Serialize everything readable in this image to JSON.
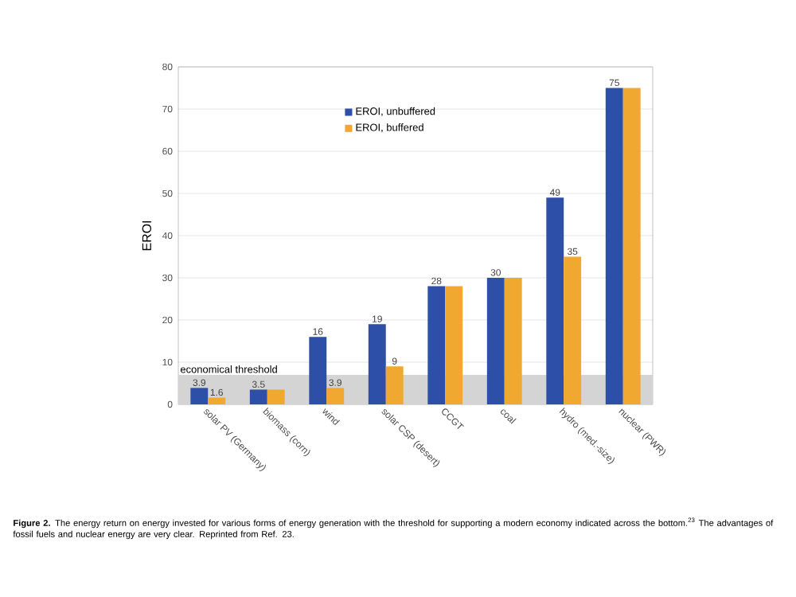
{
  "chart_data": {
    "type": "bar",
    "ylabel": "EROI",
    "categories": [
      "solar PV (Germany)",
      "biomass (corn)",
      "wind",
      "solar CSP (desert)",
      "CCGT",
      "coal",
      "hydro (med.-size)",
      "nuclear (PWR)"
    ],
    "series": [
      {
        "name": "EROI, unbuffered",
        "color": "#2e4fa8",
        "values": [
          3.9,
          3.5,
          16,
          19,
          28,
          30,
          49,
          75
        ],
        "value_labels": [
          "3.9",
          "3.5",
          "16",
          "19",
          "28",
          "30",
          "49",
          "75"
        ]
      },
      {
        "name": "EROI, buffered",
        "color": "#f0a830",
        "values": [
          1.6,
          3.5,
          3.9,
          9,
          28,
          30,
          35,
          75
        ],
        "value_labels": [
          "1.6",
          null,
          "3.9",
          "9",
          null,
          null,
          "35",
          null
        ]
      }
    ],
    "ylim": [
      0,
      80
    ],
    "yticks": [
      0,
      10,
      20,
      30,
      40,
      50,
      60,
      70,
      80
    ],
    "grid": "y",
    "legend": "top",
    "bands": [
      {
        "axis": "y",
        "from": 0,
        "to": 7,
        "label": "economical threshold",
        "color": "#d4d4d4"
      }
    ],
    "annotations": [
      "**Figure 2.** The energy return on energy invested for various forms of energy generation with the threshold for supporting a modern economy indicated across the bottom.$^{23}$ The advantages of fossil fuels and nuclear energy are very clear. Reprinted from Ref. 23."
    ]
  }
}
